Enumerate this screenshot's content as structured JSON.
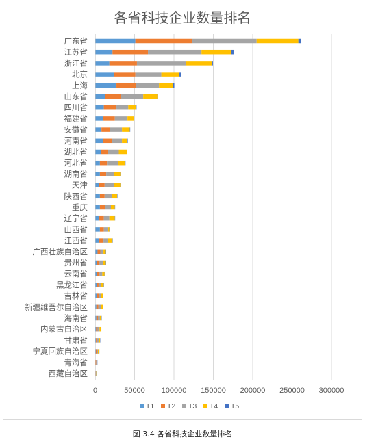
{
  "caption": "图 3.4  各省科技企业数量排名",
  "chart_data": {
    "type": "bar",
    "orientation": "horizontal",
    "stacked": true,
    "title": "各省科技企业数量排名",
    "xlabel": "",
    "ylabel": "",
    "xlim": [
      0,
      300000
    ],
    "xticks": [
      0,
      50000,
      100000,
      150000,
      200000,
      250000,
      300000
    ],
    "grid": "vertical",
    "legend_position": "bottom",
    "categories": [
      "广东省",
      "江苏省",
      "浙江省",
      "北京",
      "上海",
      "山东省",
      "四川省",
      "福建省",
      "安徽省",
      "河南省",
      "湖北省",
      "河北省",
      "湖南省",
      "天津",
      "陕西省",
      "重庆",
      "辽宁省",
      "山西省",
      "江西省",
      "广西壮族自治区",
      "贵州省",
      "云南省",
      "黑龙江省",
      "吉林省",
      "新疆维吾尔自治区",
      "海南省",
      "内蒙古自治区",
      "甘肃省",
      "宁夏回族自治区",
      "青海省",
      "西藏自治区"
    ],
    "series": [
      {
        "name": "T1",
        "color": "#5b9bd5",
        "values": [
          51000,
          22000,
          18000,
          24000,
          27000,
          13000,
          11000,
          10000,
          8000,
          10000,
          7000,
          6000,
          6000,
          5000,
          6000,
          6000,
          5000,
          6000,
          4500,
          3000,
          2500,
          2500,
          1800,
          2000,
          1500,
          1500,
          1200,
          1000,
          800,
          500,
          300
        ]
      },
      {
        "name": "T2",
        "color": "#ed7d31",
        "values": [
          72000,
          45000,
          35000,
          27000,
          25000,
          20000,
          16000,
          15000,
          11000,
          11000,
          9000,
          9000,
          8000,
          7000,
          6000,
          7000,
          6000,
          5000,
          6000,
          3500,
          3000,
          3000,
          2500,
          2500,
          2500,
          2000,
          1800,
          1500,
          1200,
          700,
          400
        ]
      },
      {
        "name": "T3",
        "color": "#a5a5a5",
        "values": [
          82000,
          68000,
          62000,
          33000,
          29000,
          28000,
          15000,
          16000,
          15000,
          13000,
          14000,
          14000,
          10000,
          12000,
          9000,
          7000,
          7000,
          5000,
          5500,
          4000,
          4500,
          3500,
          3500,
          3000,
          3000,
          2500,
          2500,
          2200,
          1500,
          800,
          500
        ]
      },
      {
        "name": "T4",
        "color": "#ffc000",
        "values": [
          53000,
          38000,
          33000,
          23000,
          18000,
          18000,
          10000,
          8000,
          10000,
          7000,
          10000,
          9000,
          8000,
          8000,
          7000,
          5000,
          7000,
          2000,
          6000,
          3000,
          3500,
          3000,
          3000,
          2500,
          3000,
          2000,
          2000,
          1500,
          1500,
          500,
          400
        ]
      },
      {
        "name": "T5",
        "color": "#4472c4",
        "values": [
          3500,
          3000,
          1500,
          2000,
          1500,
          1000,
          500,
          500,
          500,
          500,
          500,
          500,
          400,
          400,
          400,
          300,
          300,
          300,
          300,
          200,
          200,
          200,
          200,
          200,
          200,
          150,
          150,
          150,
          100,
          100,
          100
        ]
      }
    ]
  }
}
